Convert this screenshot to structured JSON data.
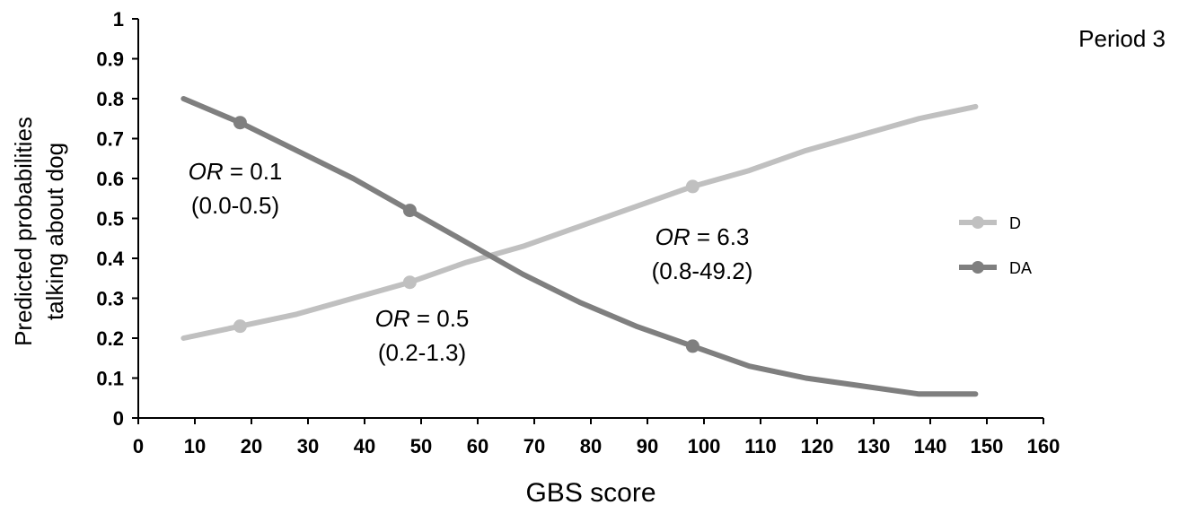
{
  "chart_data": {
    "type": "line",
    "title": "Period 3",
    "xlabel": "GBS score",
    "ylabel": [
      "Predicted probabilities",
      "talking about dog"
    ],
    "xlim": [
      0,
      160
    ],
    "ylim": [
      0,
      1
    ],
    "x_ticks": [
      "0",
      "10",
      "20",
      "30",
      "40",
      "50",
      "60",
      "70",
      "80",
      "90",
      "100",
      "110",
      "120",
      "130",
      "140",
      "150",
      "160"
    ],
    "y_ticks": [
      "0",
      "0.1",
      "0.2",
      "0.3",
      "0.4",
      "0.5",
      "0.6",
      "0.7",
      "0.8",
      "0.9",
      "1"
    ],
    "grid": false,
    "legend_position": "right",
    "series": [
      {
        "name": "D",
        "color": "#c0c0c0",
        "x": [
          8,
          18,
          28,
          38,
          48,
          58,
          68,
          78,
          88,
          98,
          108,
          118,
          128,
          138,
          148
        ],
        "y": [
          0.2,
          0.23,
          0.26,
          0.3,
          0.34,
          0.39,
          0.43,
          0.48,
          0.53,
          0.58,
          0.62,
          0.67,
          0.71,
          0.75,
          0.78
        ],
        "markers_at": [
          18,
          48,
          98
        ]
      },
      {
        "name": "DA",
        "color": "#7f7f7f",
        "x": [
          8,
          18,
          28,
          38,
          48,
          58,
          68,
          78,
          88,
          98,
          108,
          118,
          128,
          138,
          148
        ],
        "y": [
          0.8,
          0.74,
          0.67,
          0.6,
          0.52,
          0.44,
          0.36,
          0.29,
          0.23,
          0.18,
          0.13,
          0.1,
          0.08,
          0.06,
          0.06
        ],
        "markers_at": [
          18,
          48,
          98
        ]
      }
    ],
    "annotations": [
      {
        "or_label": "OR",
        "or_value": " = 0.1",
        "ci": "(0.0-0.5)"
      },
      {
        "or_label": "OR",
        "or_value": " = 0.5",
        "ci": "(0.2-1.3)"
      },
      {
        "or_label": "OR",
        "or_value": " = 6.3",
        "ci": "(0.8-49.2)"
      }
    ]
  }
}
